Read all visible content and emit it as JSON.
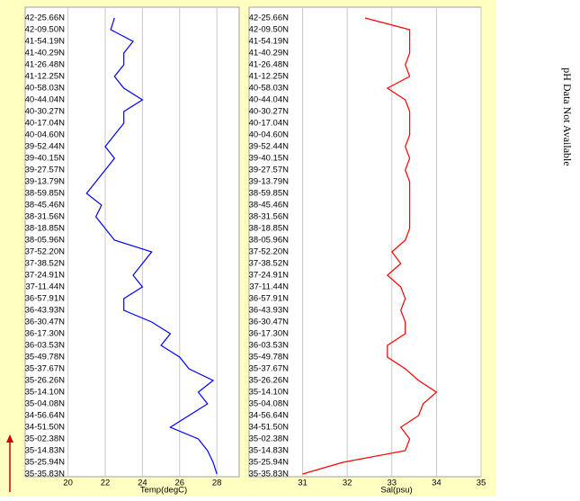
{
  "chart_data": [
    {
      "type": "line",
      "x_label": "Temp(degC)",
      "color": "#0000ff",
      "grid": true,
      "xlim": [
        17.7,
        29.2
      ],
      "xticks": [
        20,
        22,
        24,
        26,
        28
      ],
      "categories": [
        "42-25.66N",
        "42-09.50N",
        "41-54.19N",
        "41-40.29N",
        "41-26.48N",
        "41-12.25N",
        "40-58.03N",
        "40-44.04N",
        "40-30.27N",
        "40-17.04N",
        "40-04.60N",
        "39-52.44N",
        "39-40.15N",
        "39-27.57N",
        "39-13.79N",
        "38-59.85N",
        "38-45.46N",
        "38-31.56N",
        "38-18.85N",
        "38-05.96N",
        "37-52.20N",
        "37-38.52N",
        "37-24.91N",
        "37-11.44N",
        "36-57.91N",
        "36-43.93N",
        "36-30.47N",
        "36-17.30N",
        "36-03.53N",
        "35-49.78N",
        "35-37.67N",
        "35-26.26N",
        "35-14.10N",
        "35-04.08N",
        "34-56.64N",
        "34-51.50N",
        "35-02.38N",
        "35-14.83N",
        "35-25.94N",
        "35-35.83N"
      ],
      "values": [
        22.5,
        22.3,
        23.5,
        23.0,
        23.0,
        22.5,
        23.0,
        24.0,
        23.0,
        23.0,
        22.5,
        22.0,
        22.5,
        22.0,
        21.5,
        21.0,
        21.8,
        21.5,
        22.0,
        22.5,
        24.5,
        24.0,
        23.5,
        24.0,
        23.0,
        23.0,
        24.5,
        25.5,
        25.0,
        26.0,
        26.5,
        27.8,
        27.0,
        27.5,
        26.5,
        25.5,
        27.0,
        27.5,
        27.8,
        28.0
      ]
    },
    {
      "type": "line",
      "x_label": "Sal(psu)",
      "color": "#ff0000",
      "grid": true,
      "xlim": [
        29.8,
        35
      ],
      "xticks": [
        31,
        32,
        33,
        34,
        35
      ],
      "categories": [
        "42-25.66N",
        "42-09.50N",
        "41-54.19N",
        "41-40.29N",
        "41-26.48N",
        "41-12.25N",
        "40-58.03N",
        "40-44.04N",
        "40-30.27N",
        "40-17.04N",
        "40-04.60N",
        "39-52.44N",
        "39-40.15N",
        "39-27.57N",
        "39-13.79N",
        "38-59.85N",
        "38-45.46N",
        "38-31.56N",
        "38-18.85N",
        "38-05.96N",
        "37-52.20N",
        "37-38.52N",
        "37-24.91N",
        "37-11.44N",
        "36-57.91N",
        "36-43.93N",
        "36-30.47N",
        "36-17.30N",
        "36-03.53N",
        "35-49.78N",
        "35-37.67N",
        "35-26.26N",
        "35-14.10N",
        "35-04.08N",
        "34-56.64N",
        "34-51.50N",
        "35-02.38N",
        "35-14.83N",
        "35-25.94N",
        "35-35.83N"
      ],
      "values": [
        32.4,
        33.4,
        33.4,
        33.4,
        33.3,
        33.4,
        32.9,
        33.3,
        33.4,
        33.4,
        33.4,
        33.3,
        33.4,
        33.3,
        33.4,
        33.4,
        33.4,
        33.4,
        33.4,
        33.3,
        33.0,
        33.2,
        32.9,
        33.2,
        33.3,
        33.2,
        33.3,
        33.3,
        32.9,
        32.9,
        33.3,
        33.6,
        34.0,
        33.7,
        33.6,
        33.2,
        33.4,
        33.3,
        31.9,
        31.0
      ]
    }
  ],
  "side_note": "pH Data Not Available"
}
